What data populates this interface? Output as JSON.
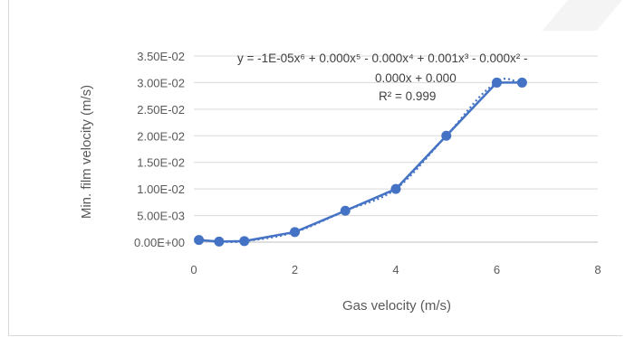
{
  "chart_data": {
    "type": "scatter",
    "title": "",
    "xlabel": "Gas velocity (m/s)",
    "ylabel": "Min. film velocity (m/s)",
    "xlim": [
      0,
      8
    ],
    "ylim": [
      0,
      0.035
    ],
    "x_ticks": [
      "0",
      "2",
      "4",
      "6",
      "8"
    ],
    "y_ticks": [
      "0.00E+00",
      "5.00E-03",
      "1.00E-02",
      "1.50E-02",
      "2.00E-02",
      "2.50E-02",
      "3.00E-02",
      "3.50E-02"
    ],
    "grid": "horizontal",
    "series": [
      {
        "x": [
          0.1,
          0.5,
          1,
          2,
          3,
          4,
          5,
          6,
          6.5
        ],
        "y": [
          0.0004,
          0.0001,
          0.0002,
          0.0019,
          0.0059,
          0.01,
          0.02,
          0.03,
          0.03
        ],
        "color": "#4472c4",
        "markers": true,
        "line": "solid"
      }
    ],
    "trendline": {
      "type": "polynomial",
      "order": 6,
      "style": "dotted",
      "color": "#4472c4",
      "equation_lines": [
        "y = -1E-05x⁶ + 0.000x⁵ - 0.000x⁴ + 0.001x³ - 0.000x² -",
        "0.000x + 0.000"
      ],
      "r_squared": "R² = 0.999"
    }
  }
}
